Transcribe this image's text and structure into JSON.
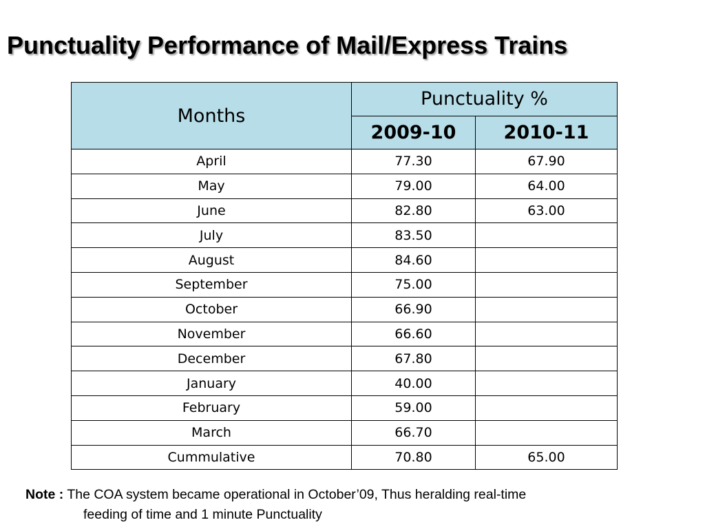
{
  "title": "Punctuality Performance of Mail/Express Trains",
  "table": {
    "months_header": "Months",
    "group_header": "Punctuality  %",
    "year1": "2009-10",
    "year2": "2010-11",
    "rows": [
      {
        "month": "April",
        "v1": "77.30",
        "v2": "67.90",
        "bold": true
      },
      {
        "month": "May",
        "v1": "79.00",
        "v2": "64.00",
        "bold": true
      },
      {
        "month": "June",
        "v1": "82.80",
        "v2": "63.00",
        "bold": true
      },
      {
        "month": "July",
        "v1": "83.50",
        "v2": "",
        "bold": false
      },
      {
        "month": "August",
        "v1": "84.60",
        "v2": "",
        "bold": false
      },
      {
        "month": "September",
        "v1": "75.00",
        "v2": "",
        "bold": false
      },
      {
        "month": "October",
        "v1": "66.90",
        "v2": "",
        "bold": false
      },
      {
        "month": "November",
        "v1": "66.60",
        "v2": "",
        "bold": false
      },
      {
        "month": "December",
        "v1": "67.80",
        "v2": "",
        "bold": false
      },
      {
        "month": "January",
        "v1": "40.00",
        "v2": "",
        "bold": false
      },
      {
        "month": "February",
        "v1": "59.00",
        "v2": "",
        "bold": false
      },
      {
        "month": "March",
        "v1": "66.70",
        "v2": "",
        "bold": false
      }
    ],
    "total": {
      "label": "Cummulative",
      "v1": "70.80",
      "v2": "65.00"
    }
  },
  "note": {
    "label": "Note :",
    "line1": "The COA system became operational in October’09, Thus heralding real-time",
    "line2": "feeding of time and 1 minute Punctuality"
  },
  "colors": {
    "header_bg": "#b7dde8",
    "title_shadow": "#9a9a9a"
  }
}
